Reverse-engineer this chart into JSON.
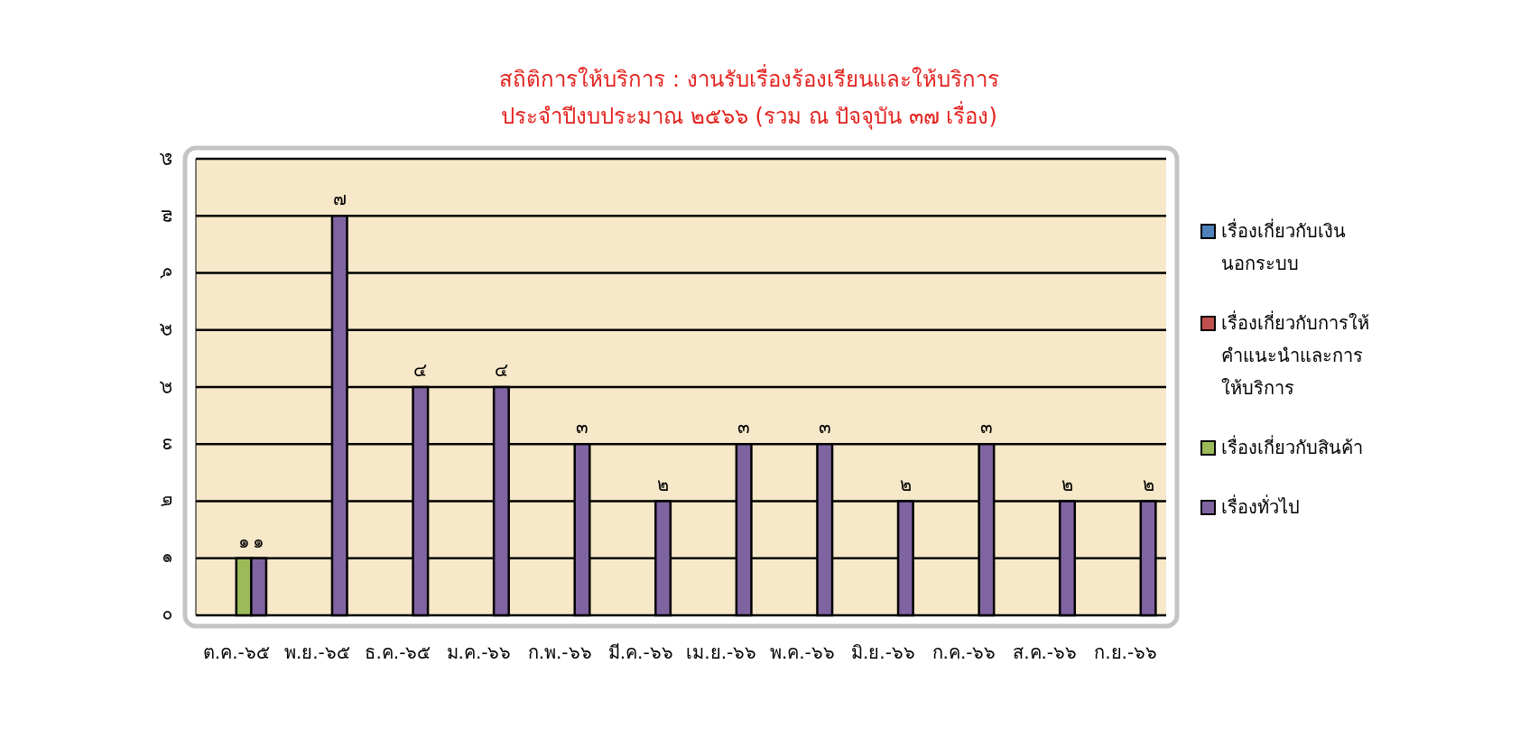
{
  "chart_data": {
    "type": "bar",
    "title": "สถิติการให้บริการ : งานรับเรื่องร้องเรียนและให้บริการ",
    "subtitle": "ประจำปีงบประมาณ ๒๕๖๖ (รวม ณ ปัจจุบัน ๓๗ เรื่อง)",
    "categories": [
      "ต.ค.-๖๕",
      "พ.ย.-๖๕",
      "ธ.ค.-๖๕",
      "ม.ค.-๖๖",
      "ก.พ.-๖๖",
      "มี.ค.-๖๖",
      "เม.ย.-๖๖",
      "พ.ค.-๖๖",
      "มิ.ย.-๖๖",
      "ก.ค.-๖๖",
      "ส.ค.-๖๖",
      "ก.ย.-๖๖"
    ],
    "series": [
      {
        "name": "เรื่องเกี่ยวกับเงินนอกระบบ",
        "color": "#4f81bd",
        "values": [
          null,
          null,
          null,
          null,
          null,
          null,
          null,
          null,
          null,
          null,
          null,
          null
        ]
      },
      {
        "name": "เรื่องเกี่ยวกับการให้คำแนะนำและการให้บริการ",
        "color": "#c0504d",
        "values": [
          null,
          null,
          null,
          null,
          null,
          null,
          null,
          null,
          null,
          null,
          null,
          null
        ]
      },
      {
        "name": "เรื่องเกี่ยวกับสินค้า",
        "color": "#9bbb59",
        "values": [
          1,
          null,
          null,
          null,
          null,
          null,
          null,
          null,
          null,
          null,
          null,
          null
        ],
        "value_labels": [
          "๑",
          null,
          null,
          null,
          null,
          null,
          null,
          null,
          null,
          null,
          null,
          null
        ]
      },
      {
        "name": "เรื่องทั่วไป",
        "color": "#8064a2",
        "values": [
          1,
          7,
          4,
          4,
          3,
          2,
          3,
          3,
          2,
          3,
          2,
          2
        ],
        "value_labels": [
          "๑",
          "๗",
          "๔",
          "๔",
          "๓",
          "๒",
          "๓",
          "๓",
          "๒",
          "๓",
          "๒",
          "๒"
        ]
      }
    ],
    "ylim": [
      0,
      8
    ],
    "yticks": [
      {
        "value": 0,
        "label": "๐"
      },
      {
        "value": 1,
        "label": "๑"
      },
      {
        "value": 2,
        "label": "๒"
      },
      {
        "value": 3,
        "label": "๓"
      },
      {
        "value": 4,
        "label": "๔"
      },
      {
        "value": 5,
        "label": "๕"
      },
      {
        "value": 6,
        "label": "๖"
      },
      {
        "value": 7,
        "label": "๗"
      },
      {
        "value": 8,
        "label": "๘"
      }
    ],
    "grid": "y",
    "legend": "right"
  }
}
